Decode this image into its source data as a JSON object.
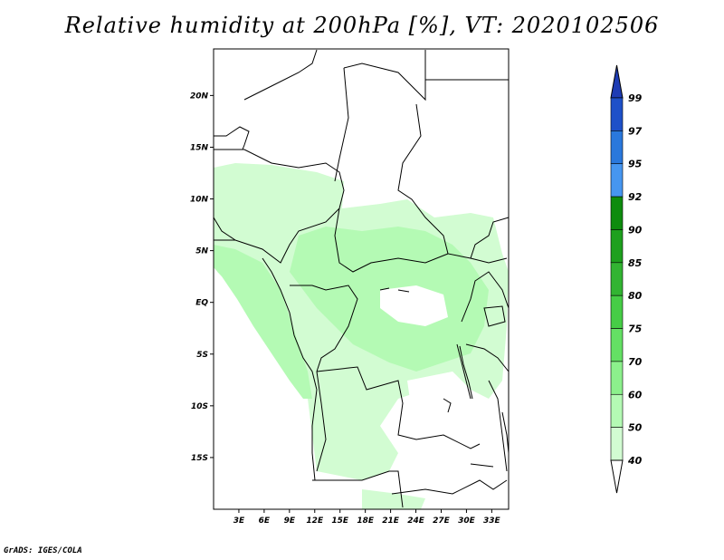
{
  "title": "Relative humidity at 200hPa [%], VT: 2020102506",
  "credit": "GrADS: IGES/COLA",
  "map": {
    "lat_labels": [
      "20N",
      "15N",
      "10N",
      "5N",
      "EQ",
      "5S",
      "10S",
      "15S"
    ],
    "lat_values": [
      20,
      15,
      10,
      5,
      0,
      -5,
      -10,
      -15
    ],
    "lon_labels": [
      "3E",
      "6E",
      "9E",
      "12E",
      "15E",
      "18E",
      "21E",
      "24E",
      "27E",
      "30E",
      "33E"
    ],
    "lon_values": [
      3,
      6,
      9,
      12,
      15,
      18,
      21,
      24,
      27,
      30,
      33
    ],
    "lat_range": [
      -20,
      24.5
    ],
    "lon_range": [
      0,
      35
    ]
  },
  "colorbar": {
    "labels": [
      "99",
      "97",
      "95",
      "92",
      "90",
      "85",
      "80",
      "75",
      "70",
      "60",
      "50",
      "40"
    ],
    "colors": [
      "#1e50c8",
      "#2a78dc",
      "#4696f0",
      "#0e8c0e",
      "#1ea01e",
      "#32b432",
      "#46cd46",
      "#64e064",
      "#8cf08c",
      "#b4fab4",
      "#d2fcd2",
      "#f0fff0"
    ],
    "top_triangle_color": "#1e3cb4",
    "bottom_triangle_color": "#ffffff"
  },
  "colors": {
    "humid_light": "#d2fcd2",
    "humid_mid": "#b4fab4",
    "border": "#000000"
  }
}
